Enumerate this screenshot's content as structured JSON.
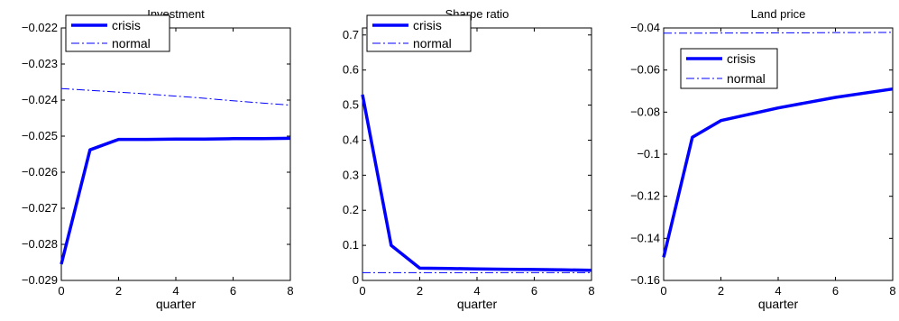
{
  "chart_data": [
    {
      "type": "line",
      "title": "Investment",
      "xlabel": "quarter",
      "ylabel": "",
      "xlim": [
        0,
        8
      ],
      "ylim": [
        -0.029,
        -0.022
      ],
      "xticks": [
        0,
        2,
        4,
        6,
        8
      ],
      "xtick_labels": [
        "0",
        "2",
        "4",
        "6",
        "8"
      ],
      "yticks": [
        -0.029,
        -0.028,
        -0.027,
        -0.026,
        -0.025,
        -0.024,
        -0.023,
        -0.022
      ],
      "ytick_labels": [
        "−0.029",
        "−0.028",
        "−0.027",
        "−0.026",
        "−0.025",
        "−0.024",
        "−0.023",
        "−0.022"
      ],
      "grid": false,
      "legend": "top-left",
      "series": [
        {
          "name": "crisis",
          "style": "solid-thick",
          "color": "#0000ff",
          "x": [
            0,
            1,
            2,
            3,
            4,
            5,
            6,
            7,
            8
          ],
          "values": [
            -0.02855,
            -0.02538,
            -0.02509,
            -0.02509,
            -0.02508,
            -0.02508,
            -0.02507,
            -0.02507,
            -0.02506
          ]
        },
        {
          "name": "normal",
          "style": "dashdot",
          "color": "#0000ff",
          "x": [
            0,
            1,
            2,
            3,
            4,
            5,
            6,
            7,
            8
          ],
          "values": [
            -0.02368,
            -0.02373,
            -0.02378,
            -0.02383,
            -0.02389,
            -0.02395,
            -0.02402,
            -0.02408,
            -0.02414
          ]
        }
      ]
    },
    {
      "type": "line",
      "title": "Sharpe ratio",
      "xlabel": "quarter",
      "ylabel": "",
      "xlim": [
        0,
        8
      ],
      "ylim": [
        0,
        0.72
      ],
      "xticks": [
        0,
        2,
        4,
        6,
        8
      ],
      "xtick_labels": [
        "0",
        "2",
        "4",
        "6",
        "8"
      ],
      "yticks": [
        0,
        0.1,
        0.2,
        0.3,
        0.4,
        0.5,
        0.6,
        0.7
      ],
      "ytick_labels": [
        "0",
        "0.1",
        "0.2",
        "0.3",
        "0.4",
        "0.5",
        "0.6",
        "0.7"
      ],
      "grid": false,
      "legend": "top-left",
      "series": [
        {
          "name": "crisis",
          "style": "solid-thick",
          "color": "#0000ff",
          "x": [
            0,
            1,
            2,
            3,
            4,
            5,
            6,
            7,
            8
          ],
          "values": [
            0.53,
            0.1,
            0.035,
            0.034,
            0.033,
            0.032,
            0.031,
            0.03,
            0.029
          ]
        },
        {
          "name": "normal",
          "style": "dashdot",
          "color": "#0000ff",
          "x": [
            0,
            1,
            2,
            3,
            4,
            5,
            6,
            7,
            8
          ],
          "values": [
            0.022,
            0.022,
            0.022,
            0.022,
            0.022,
            0.022,
            0.022,
            0.022,
            0.022
          ]
        }
      ]
    },
    {
      "type": "line",
      "title": "Land price",
      "xlabel": "quarter",
      "ylabel": "",
      "xlim": [
        0,
        8
      ],
      "ylim": [
        -0.16,
        -0.04
      ],
      "xticks": [
        0,
        2,
        4,
        6,
        8
      ],
      "xtick_labels": [
        "0",
        "2",
        "4",
        "6",
        "8"
      ],
      "yticks": [
        -0.16,
        -0.14,
        -0.12,
        -0.1,
        -0.08,
        -0.06,
        -0.04
      ],
      "ytick_labels": [
        "−0.16",
        "−0.14",
        "−0.12",
        "−0.1",
        "−0.08",
        "−0.06",
        "−0.04"
      ],
      "grid": false,
      "legend": "upper-left-inside",
      "series": [
        {
          "name": "crisis",
          "style": "solid-thick",
          "color": "#0000ff",
          "x": [
            0,
            1,
            2,
            3,
            4,
            5,
            6,
            7,
            8
          ],
          "values": [
            -0.149,
            -0.092,
            -0.084,
            -0.081,
            -0.078,
            -0.0755,
            -0.073,
            -0.071,
            -0.069
          ]
        },
        {
          "name": "normal",
          "style": "dashdot",
          "color": "#0000ff",
          "x": [
            0,
            1,
            2,
            3,
            4,
            5,
            6,
            7,
            8
          ],
          "values": [
            -0.0425,
            -0.0425,
            -0.0424,
            -0.0424,
            -0.0423,
            -0.0423,
            -0.0422,
            -0.0422,
            -0.0421
          ]
        }
      ]
    }
  ]
}
